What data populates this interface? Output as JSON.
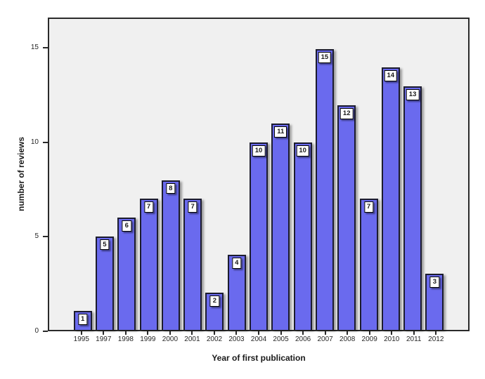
{
  "chart_data": {
    "type": "bar",
    "title": "",
    "xlabel": "Year of first publication",
    "ylabel": "number of reviews",
    "categories": [
      "1995",
      "1997",
      "1998",
      "1999",
      "2000",
      "2001",
      "2002",
      "2003",
      "2004",
      "2005",
      "2006",
      "2007",
      "2008",
      "2009",
      "2010",
      "2011",
      "2012"
    ],
    "values": [
      1,
      5,
      6,
      7,
      8,
      7,
      2,
      4,
      10,
      11,
      10,
      15,
      12,
      7,
      14,
      13,
      3
    ],
    "yticks": [
      0,
      5,
      10,
      15
    ],
    "ylim": [
      0,
      16.6
    ],
    "grid": false,
    "legend_position": "none",
    "value_labels_shown": true,
    "colors": {
      "bar_fill": "#6A6AEE",
      "bar_border": "#1C1C2E",
      "panel_background": "#F0F0F0",
      "panel_border": "#2A2A2A",
      "label_box_background": "#FFFFFF",
      "label_box_border": "#000000",
      "text": "#262626"
    }
  }
}
